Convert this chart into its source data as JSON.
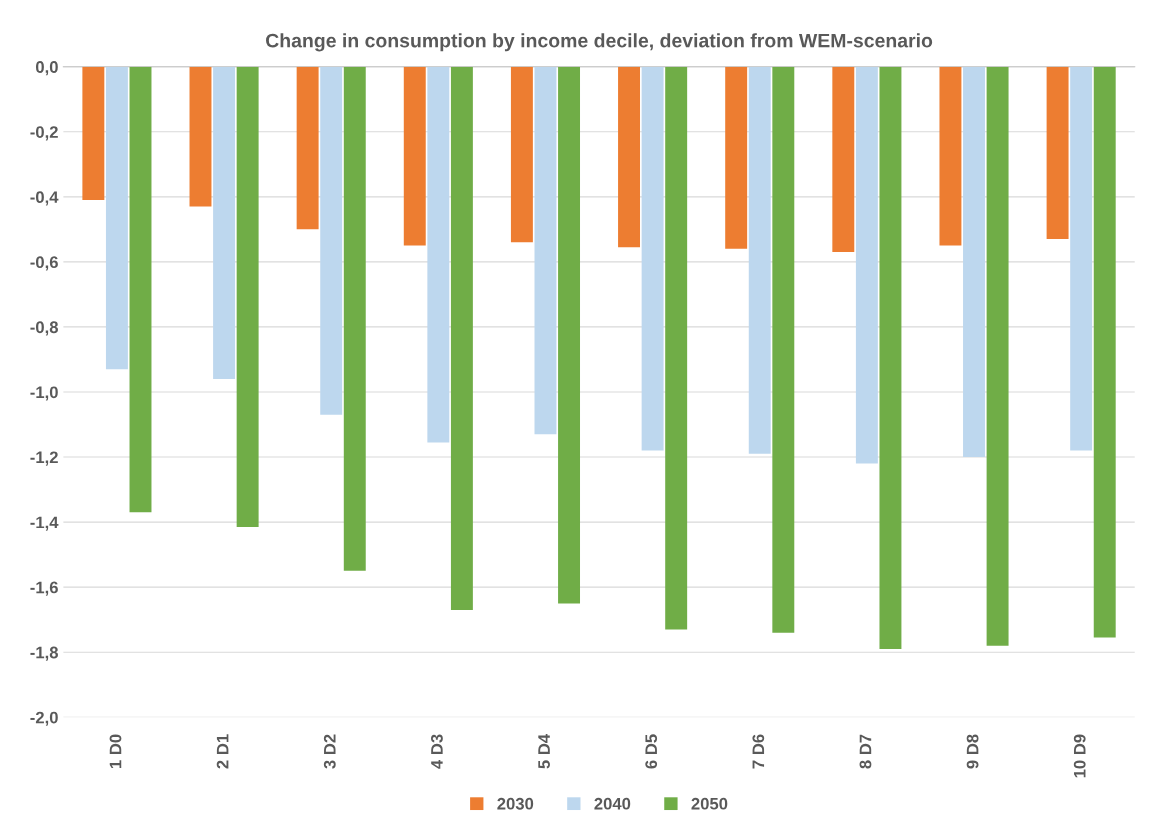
{
  "chart_data": {
    "type": "bar",
    "title": "Change in consumption by income decile, deviation from WEM-scenario",
    "categories": [
      "1 D0",
      "2 D1",
      "3 D2",
      "4 D3",
      "5 D4",
      "6 D5",
      "7 D6",
      "8 D7",
      "9 D8",
      "10 D9"
    ],
    "series": [
      {
        "name": "2030",
        "color": "#ed7d31",
        "values": [
          -0.41,
          -0.43,
          -0.5,
          -0.55,
          -0.54,
          -0.555,
          -0.56,
          -0.57,
          -0.55,
          -0.53
        ]
      },
      {
        "name": "2040",
        "color": "#bdd7ee",
        "values": [
          -0.93,
          -0.96,
          -1.07,
          -1.155,
          -1.13,
          -1.18,
          -1.19,
          -1.22,
          -1.2,
          -1.18
        ]
      },
      {
        "name": "2050",
        "color": "#70ad47",
        "values": [
          -1.37,
          -1.415,
          -1.55,
          -1.67,
          -1.65,
          -1.73,
          -1.74,
          -1.79,
          -1.78,
          -1.755
        ]
      }
    ],
    "ylim": [
      -2.0,
      0.0
    ],
    "yticks": [
      {
        "value": 0,
        "label": "0,0"
      },
      {
        "value": -0.2,
        "label": "-0,2"
      },
      {
        "value": -0.4,
        "label": "-0,4"
      },
      {
        "value": -0.6,
        "label": "-0,6"
      },
      {
        "value": -0.8,
        "label": "-0,8"
      },
      {
        "value": -1.0,
        "label": "-1,0"
      },
      {
        "value": -1.2,
        "label": "-1,2"
      },
      {
        "value": -1.4,
        "label": "-1,4"
      },
      {
        "value": -1.6,
        "label": "-1,6"
      },
      {
        "value": -1.8,
        "label": "-1,8"
      },
      {
        "value": -2.0,
        "label": "-2,0"
      }
    ],
    "grid": "y",
    "legend": "bottom"
  }
}
